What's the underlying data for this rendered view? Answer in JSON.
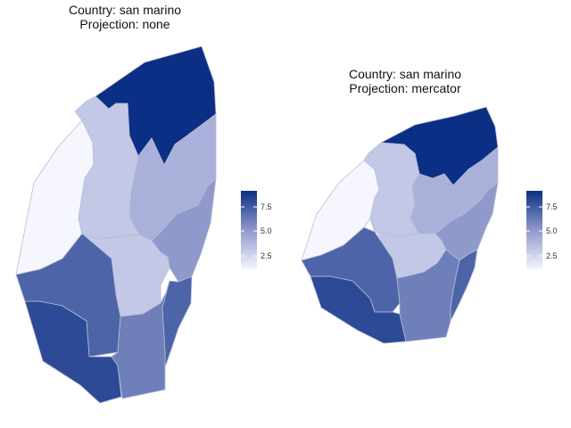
{
  "panels": [
    {
      "title_line1": "Country: san marino",
      "title_line2": "Projection: none"
    },
    {
      "title_line1": "Country: san marino",
      "title_line2": "Projection: mercator"
    }
  ],
  "legend": {
    "ticks": [
      "2.5",
      "5.0",
      "7.5"
    ],
    "tick_values": [
      2.5,
      5.0,
      7.5
    ],
    "range": [
      1,
      9
    ],
    "low_color": "#eef0fc",
    "high_color": "#0b2f84"
  },
  "regions": [
    {
      "id": "north",
      "value": 9
    },
    {
      "id": "center-north",
      "value": 3
    },
    {
      "id": "northwest",
      "value": 1
    },
    {
      "id": "east",
      "value": 4
    },
    {
      "id": "center",
      "value": 3
    },
    {
      "id": "southeast",
      "value": 5
    },
    {
      "id": "west",
      "value": 7
    },
    {
      "id": "far-southeast",
      "value": 7
    },
    {
      "id": "southwest",
      "value": 8
    },
    {
      "id": "south",
      "value": 6
    }
  ]
}
